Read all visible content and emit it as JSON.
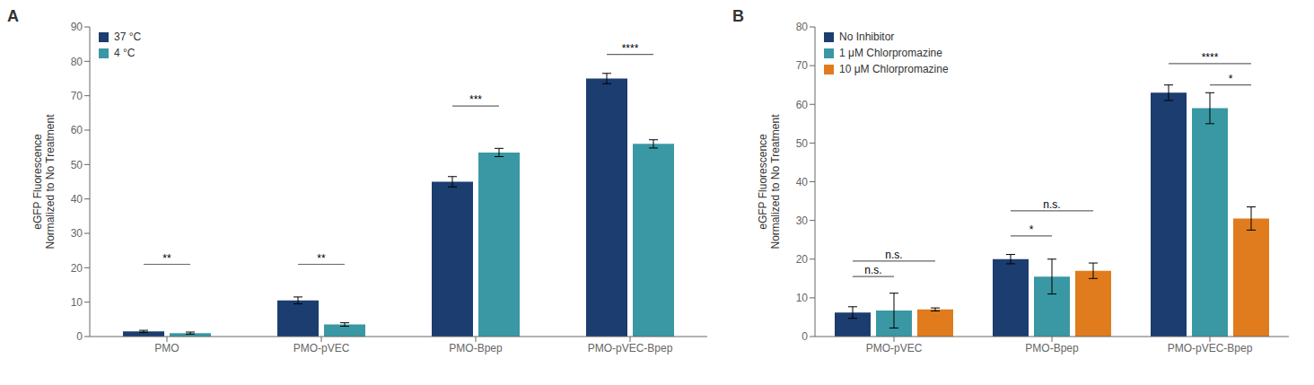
{
  "chart_data": [
    {
      "type": "bar",
      "title": "A",
      "categories": [
        "PMO",
        "PMO-pVEC",
        "PMO-Bpep",
        "PMO-pVEC-Bpep"
      ],
      "series": [
        {
          "name": "37 °C",
          "color": "#1b3d6f",
          "values": [
            1.5,
            10.5,
            45.0,
            75.0
          ],
          "errors": [
            0.3,
            1.0,
            1.5,
            1.5
          ]
        },
        {
          "name": "4 °C",
          "color": "#3998a4",
          "values": [
            1.0,
            3.5,
            53.5,
            56.0
          ],
          "errors": [
            0.3,
            0.5,
            1.2,
            1.2
          ]
        }
      ],
      "ylabel": "eGFP Fluorescence\nNormalized to No Treatment",
      "ylim": [
        0,
        90
      ],
      "yticks": [
        0,
        10,
        20,
        30,
        40,
        50,
        60,
        70,
        80,
        90
      ],
      "legend": "upper left",
      "grid": false,
      "annotations": [
        {
          "category": "PMO",
          "series": [
            "37 °C",
            "4 °C"
          ],
          "y": 21,
          "label": "**"
        },
        {
          "category": "PMO-pVEC",
          "series": [
            "37 °C",
            "4 °C"
          ],
          "y": 21,
          "label": "**"
        },
        {
          "category": "PMO-Bpep",
          "series": [
            "37 °C",
            "4 °C"
          ],
          "y": 67,
          "label": "***"
        },
        {
          "category": "PMO-pVEC-Bpep",
          "series": [
            "37 °C",
            "4 °C"
          ],
          "y": 82,
          "label": "****"
        }
      ]
    },
    {
      "type": "bar",
      "title": "B",
      "categories": [
        "PMO-pVEC",
        "PMO-Bpep",
        "PMO-pVEC-Bpep"
      ],
      "series": [
        {
          "name": "No Inhibitor",
          "color": "#1b3d6f",
          "values": [
            6.2,
            20.0,
            63.0
          ],
          "errors": [
            1.5,
            1.2,
            2.0
          ]
        },
        {
          "name": "1 μM Chlorpromazine",
          "color": "#3998a4",
          "values": [
            6.7,
            15.5,
            59.0
          ],
          "errors": [
            4.5,
            4.5,
            4.0
          ]
        },
        {
          "name": "10 μM Chlorpromazine",
          "color": "#e07c1e",
          "values": [
            7.0,
            17.0,
            30.5
          ],
          "errors": [
            0.4,
            2.0,
            3.0
          ]
        }
      ],
      "ylabel": "eGFP Fluorescence\nNormalized to No Treatment",
      "ylim": [
        0,
        80
      ],
      "yticks": [
        0,
        10,
        20,
        30,
        40,
        50,
        60,
        70,
        80
      ],
      "legend": "upper left",
      "grid": false,
      "annotations": [
        {
          "category": "PMO-pVEC",
          "series": [
            "No Inhibitor",
            "1 μM Chlorpromazine"
          ],
          "y": 15.5,
          "label": "n.s."
        },
        {
          "category": "PMO-pVEC",
          "series": [
            "No Inhibitor",
            "10 μM Chlorpromazine"
          ],
          "y": 19.5,
          "label": "n.s."
        },
        {
          "category": "PMO-Bpep",
          "series": [
            "No Inhibitor",
            "1 μM Chlorpromazine"
          ],
          "y": 26.0,
          "label": "*"
        },
        {
          "category": "PMO-Bpep",
          "series": [
            "No Inhibitor",
            "10 μM Chlorpromazine"
          ],
          "y": 32.5,
          "label": "n.s."
        },
        {
          "category": "PMO-pVEC-Bpep",
          "series": [
            "1 μM Chlorpromazine",
            "10 μM Chlorpromazine"
          ],
          "y": 65.0,
          "label": "*"
        },
        {
          "category": "PMO-pVEC-Bpep",
          "series": [
            "No Inhibitor",
            "10 μM Chlorpromazine"
          ],
          "y": 70.5,
          "label": "****"
        }
      ]
    }
  ]
}
